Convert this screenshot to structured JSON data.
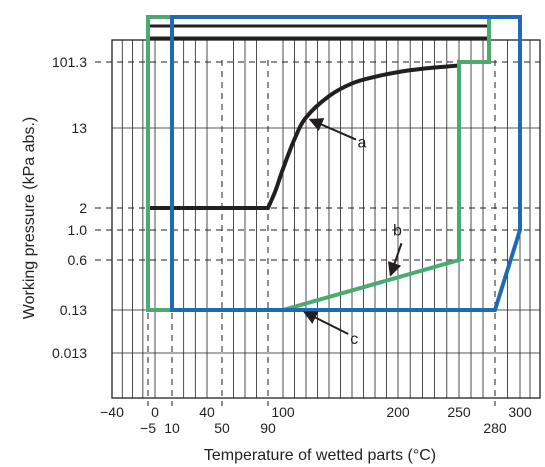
{
  "chart_data": {
    "type": "line",
    "title": "",
    "xlabel": "Temperature of wetted parts (°C)",
    "ylabel": "Working pressure (kPa abs.)",
    "x_ticks": [
      {
        "value": -40,
        "label": "−40",
        "row": "upper"
      },
      {
        "value": -5,
        "label": "−5",
        "row": "lower"
      },
      {
        "value": 0,
        "label": "0",
        "row": "upper"
      },
      {
        "value": 10,
        "label": "10",
        "row": "lower"
      },
      {
        "value": 40,
        "label": "40",
        "row": "upper"
      },
      {
        "value": 50,
        "label": "50",
        "row": "lower"
      },
      {
        "value": 90,
        "label": "90",
        "row": "lower"
      },
      {
        "value": 100,
        "label": "100",
        "row": "upper"
      },
      {
        "value": 200,
        "label": "200",
        "row": "upper"
      },
      {
        "value": 250,
        "label": "250",
        "row": "upper"
      },
      {
        "value": 280,
        "label": "280",
        "row": "lower"
      },
      {
        "value": 300,
        "label": "300",
        "row": "upper"
      }
    ],
    "y_ticks": [
      {
        "value": 0.013,
        "label": "0.013"
      },
      {
        "value": 0.13,
        "label": "0.13"
      },
      {
        "value": 0.6,
        "label": "0.6"
      },
      {
        "value": 1.0,
        "label": "1.0"
      },
      {
        "value": 2,
        "label": "2"
      },
      {
        "value": 13,
        "label": "13"
      },
      {
        "value": 101.3,
        "label": "101.3"
      }
    ],
    "dashed_x": [
      -5,
      10,
      50,
      90,
      280
    ],
    "dashed_y": [
      101.3,
      2,
      1.0,
      0.6
    ],
    "series": [
      {
        "name": "a",
        "color": "#231f20",
        "points": [
          [
            -5,
            2
          ],
          [
            90,
            2
          ],
          [
            95,
            3
          ],
          [
            100,
            5
          ],
          [
            110,
            10
          ],
          [
            120,
            18
          ],
          [
            140,
            35
          ],
          [
            160,
            52
          ],
          [
            180,
            64
          ],
          [
            200,
            74
          ],
          [
            220,
            82
          ],
          [
            240,
            88
          ],
          [
            250,
            91
          ]
        ]
      },
      {
        "name": "b",
        "color": "#4aaa72",
        "points": [
          [
            -5,
            "top"
          ],
          [
            275,
            "top"
          ],
          [
            275,
            101.3
          ],
          [
            250,
            101.3
          ],
          [
            250,
            0.6
          ],
          [
            100,
            0.13
          ],
          [
            -5,
            0.13
          ],
          [
            -5,
            "top"
          ]
        ]
      },
      {
        "name": "c",
        "color": "#1f6ab5",
        "points": [
          [
            10,
            "top"
          ],
          [
            300,
            "top"
          ],
          [
            300,
            1.0
          ],
          [
            280,
            0.13
          ],
          [
            10,
            0.13
          ],
          [
            10,
            "top"
          ]
        ]
      }
    ],
    "annotations": [
      {
        "label": "a",
        "target": [
          120,
          18
        ]
      },
      {
        "label": "b",
        "target": [
          190,
          0.4
        ]
      },
      {
        "label": "c",
        "target": [
          115,
          0.13
        ]
      }
    ],
    "top_rule_color": "#231f20"
  }
}
